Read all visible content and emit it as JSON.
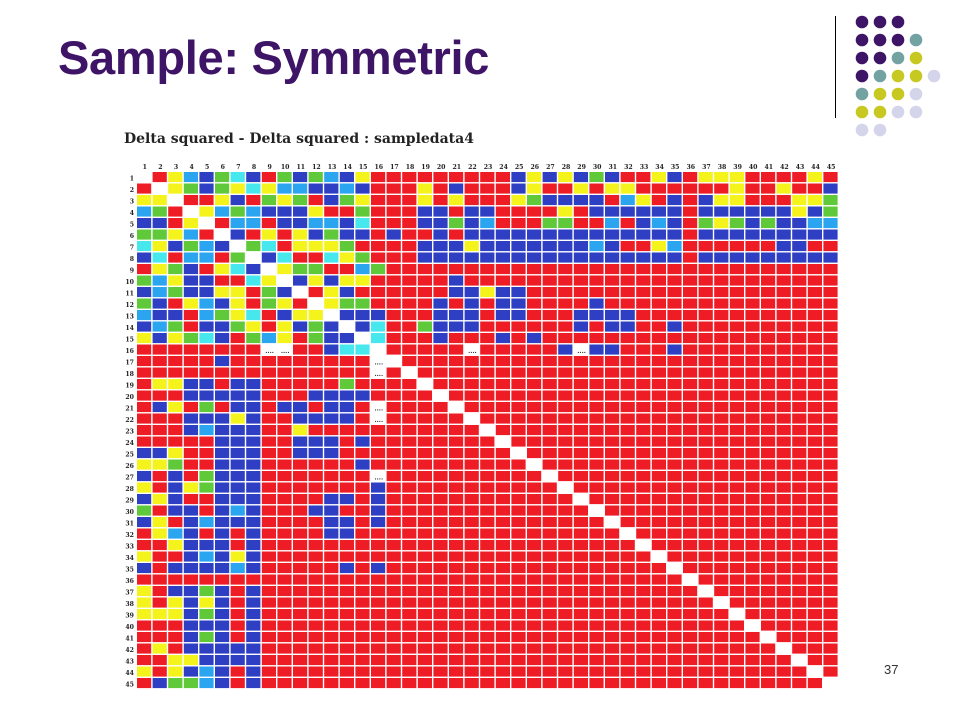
{
  "slide": {
    "title": "Sample: Symmetric",
    "page_number": "37"
  },
  "decoration": {
    "dot_colors": {
      "purple": "#3e1466",
      "teal": "#73a2a2",
      "olive": "#c8c822",
      "lavender": "#d4d4ea"
    },
    "dot_grid": [
      [
        "purple",
        "purple",
        "purple"
      ],
      [
        "purple",
        "purple",
        "purple",
        "teal"
      ],
      [
        "purple",
        "purple",
        "teal",
        "olive"
      ],
      [
        "purple",
        "teal",
        "olive",
        "olive",
        "lavender"
      ],
      [
        "teal",
        "olive",
        "olive",
        "lavender"
      ],
      [
        "olive",
        "olive",
        "lavender",
        "lavender"
      ],
      [
        "lavender",
        "lavender"
      ]
    ]
  },
  "chart_data": {
    "type": "heatmap",
    "title": "Delta squared - Delta squared : sampledata4",
    "labels": [
      "1",
      "2",
      "3",
      "4",
      "5",
      "6",
      "7",
      "8",
      "9",
      "10",
      "11",
      "12",
      "13",
      "14",
      "15",
      "16",
      "17",
      "18",
      "19",
      "20",
      "21",
      "22",
      "23",
      "24",
      "25",
      "26",
      "27",
      "28",
      "29",
      "30",
      "31",
      "32",
      "33",
      "34",
      "35",
      "36",
      "37",
      "38",
      "39",
      "40",
      "41",
      "42",
      "43",
      "44",
      "45"
    ],
    "symmetric": true,
    "diagonal": "white",
    "missing_marker": "....",
    "missing_cells": [
      [
        16,
        9
      ],
      [
        16,
        10
      ],
      [
        16,
        22
      ],
      [
        16,
        29
      ],
      [
        17,
        16
      ],
      [
        18,
        16
      ],
      [
        21,
        16
      ],
      [
        22,
        16
      ],
      [
        27,
        16
      ]
    ],
    "palette": {
      "R": "#ee1c24",
      "B": "#2e3fc4",
      "Y": "#f5f31c",
      "G": "#5fc93a",
      "C": "#46e8ee",
      "S": "#2ba5f0",
      "O": "#f7b81b"
    },
    "rows": [
      "",
      "R",
      "YY",
      "SGR",
      "BBRY",
      "GGYSR",
      "CYBGSB",
      "BCRSSRG",
      "RYGBRYCB",
      "GSYBBRRCY",
      "BSGBBYYRGB",
      "GBRYSBYRGYR",
      "SBBRSGYCRBYY",
      "BSGRBBGYRYBGB",
      "YBYGCBRGSYRGBB",
      "RRRRRRRRGRRRBCC",
      "RRRRRBRRRRRRRRRR",
      "RRRRRRRRRRRRRRRRR",
      "RYYBBRBBRRRRRGRRRR",
      "RRRBBBBBRRRBBBBRRRR",
      "RBYRGRBBRBBRBBRRRRRR",
      "RRRBBBYBRRBBBBRRRRRRR",
      "RRRBSBBBRRYRRRRRRRRRRR",
      "RRRRRBBBRRBBBRBRRRRRRRR",
      "BBYRRBBBRRBBBRRRRRRRRRRR",
      "YYGRRBBBRRRRRRBRRRRRRRRRR",
      "BRBRGBBBRRRRRRRRRRRRRRRRRR",
      "YRBYGBBBRRRRRRRBRRRRRRRRRRR",
      "BYBRRBBBRRRRBBRBRRRRRRRRRRRR",
      "GRBBRBSBRRRBBRRBRRRRRRRRRRRRR",
      "BYRBSBBBRRRRBBRBRRRRRRRRRRRRRR",
      "RYSBRBRBRRRRBBRRRRRRRRRRRRRRRRR",
      "RRYBBBRBRRRRRRRRRRRRRRRRRRRRRRRR",
      "YRRBSBYBRRRRRRRRRRRRRRRRRRRRRRRRR",
      "BRBBBBSBRRRRRBRBRRRRRRRRRRRRRRRRRR",
      "RRRRRRRRRRRRRRRRRRRRRRRRRRRRRRRRRRR",
      "YRBBGBRBRRRRRRRRRRRRRRRRRRRRRRRRRRRR",
      "YRYBYBRBRRRRRRRRRRRRRRRRRRRRRRRRRRRRR",
      "YYYBGBRBRRRRRRRRRRRRRRRRRRRRRRRRRRRRRR",
      "RRRBBBRBRRRRRRRRRRRRRRRRRRRRRRRRRRRRRRR",
      "RRRBGBRBRRRRRRRRRRRRRRRRRRRRRRRRRRRRRRRR",
      "RYRBBBBBRRRRRRRRRRRRRRRRRRRRRRRRRRRRRRRRR",
      "RRYYBBBBRRRRRRRRRRRRRRRRRRRRRRRRRRRRRRRRRR",
      "YRYBSBRBRRRRRRRRRRRRRRRRRRRRRRRRRRRRRRRRRRR",
      "RBGGSBRBRRRRRRRRRRRRRRRRRRRRRRRRRRRRRRRRRRRR"
    ]
  }
}
